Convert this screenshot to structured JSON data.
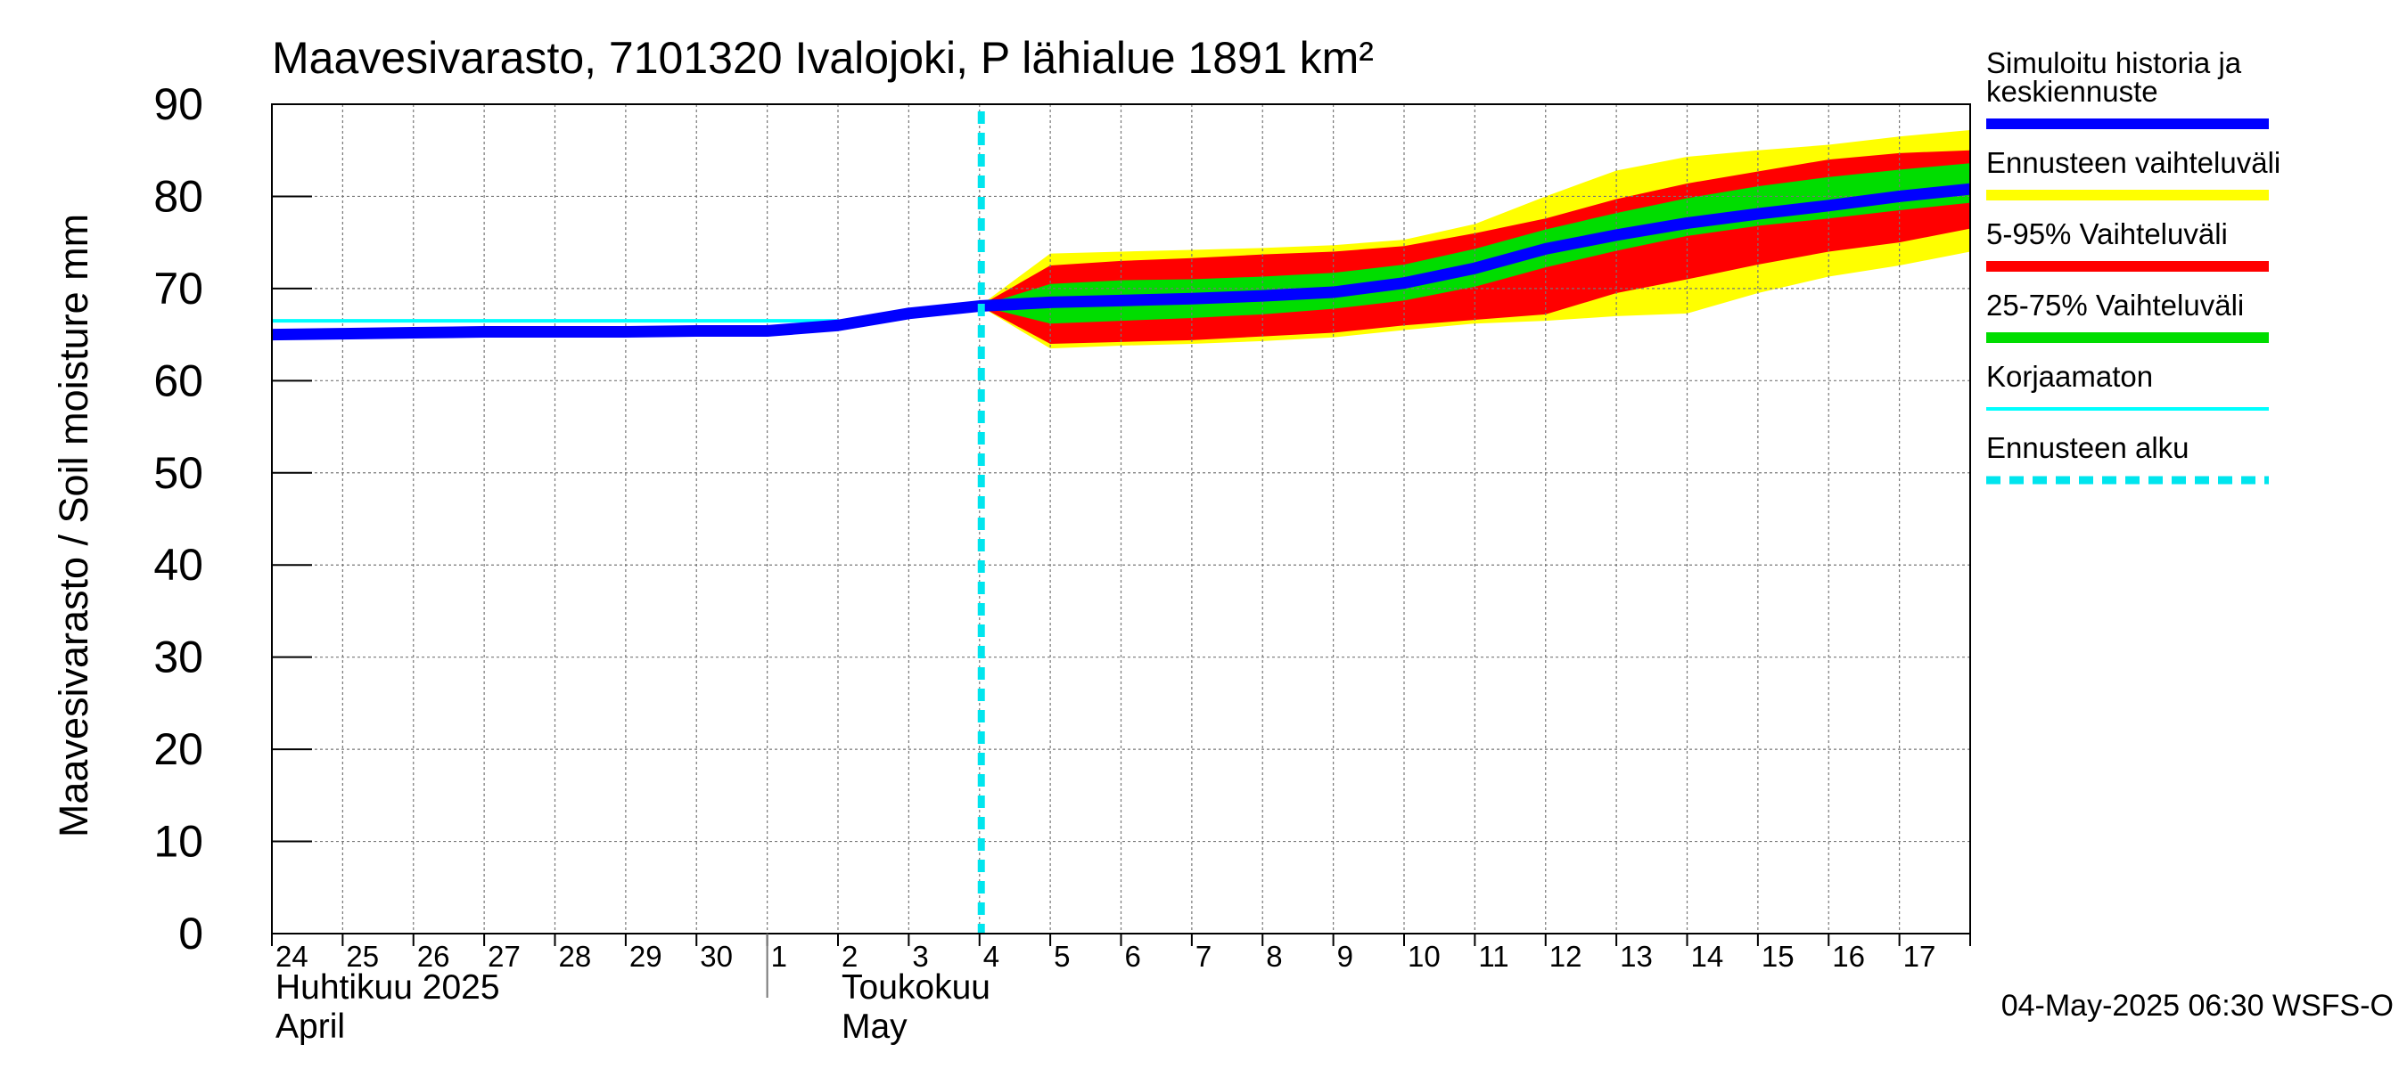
{
  "chart_data": {
    "type": "line",
    "title": "Maavesivarasto, 7101320 Ivalojoki, P lähialue 1891 km²",
    "ylabel": "Maavesivarasto / Soil moisture   mm",
    "ylim": [
      0,
      90
    ],
    "yticks": [
      0,
      10,
      20,
      30,
      40,
      50,
      60,
      70,
      80,
      90
    ],
    "xlim": [
      0,
      24
    ],
    "x_day_labels": [
      "24",
      "25",
      "26",
      "27",
      "28",
      "29",
      "30",
      "1",
      "2",
      "3",
      "4",
      "5",
      "6",
      "7",
      "8",
      "9",
      "10",
      "11",
      "12",
      "13",
      "14",
      "15",
      "16",
      "17"
    ],
    "month_labels": [
      {
        "at": 0,
        "fi": "Huhtikuu  2025",
        "en": "April"
      },
      {
        "at": 8,
        "fi": "Toukokuu",
        "en": "May"
      }
    ],
    "month_divider_at": 7,
    "forecast_start": 10.0,
    "grid": true,
    "legend_position": "right",
    "footer": "04-May-2025 06:30 WSFS-O",
    "colors": {
      "simulated": "#0000ff",
      "full_range": "#ffff00",
      "range_5_95": "#ff0000",
      "range_25_75": "#00dd00",
      "uncorrected": "#00ffff",
      "forecast_start": "#00e5ee"
    },
    "legend": [
      {
        "key": "simulated",
        "label": "Simuloitu historia ja",
        "label2": "keskiennuste",
        "style": "thick"
      },
      {
        "key": "full_range",
        "label": "Ennusteen vaihteluväli",
        "style": "thick"
      },
      {
        "key": "range_5_95",
        "label": "5-95% Vaihteluväli",
        "style": "thick"
      },
      {
        "key": "range_25_75",
        "label": "25-75% Vaihteluväli",
        "style": "thick"
      },
      {
        "key": "uncorrected",
        "label": "Korjaamaton",
        "style": "thin"
      },
      {
        "key": "forecast_start",
        "label": "Ennusteen alku",
        "style": "dashed"
      }
    ],
    "series": {
      "uncorrected": {
        "x": [
          0,
          8.0
        ],
        "y": [
          66.5,
          66.5
        ]
      },
      "simulated": {
        "x": [
          0,
          1,
          2,
          3,
          4,
          5,
          6,
          7,
          8,
          9,
          10,
          11,
          12,
          13,
          14,
          15,
          16,
          17,
          18,
          19,
          20,
          21,
          22,
          23,
          24
        ],
        "y": [
          65.0,
          65.1,
          65.2,
          65.3,
          65.3,
          65.3,
          65.4,
          65.4,
          66.0,
          67.3,
          68.1,
          68.5,
          68.7,
          68.9,
          69.2,
          69.6,
          70.6,
          72.2,
          74.3,
          75.8,
          77.1,
          78.1,
          79.0,
          80.0,
          80.8
        ]
      },
      "full_range": {
        "x": [
          10,
          11,
          12,
          13,
          14,
          15,
          16,
          17,
          18,
          19,
          20,
          21,
          22,
          23,
          24
        ],
        "upper": [
          68.1,
          73.8,
          74.0,
          74.2,
          74.4,
          74.7,
          75.3,
          77.0,
          80.0,
          82.8,
          84.3,
          85.0,
          85.6,
          86.5,
          87.2
        ],
        "lower": [
          68.1,
          63.5,
          63.8,
          64.0,
          64.3,
          64.7,
          65.5,
          66.2,
          66.5,
          67.0,
          67.3,
          69.5,
          71.3,
          72.5,
          74.0
        ]
      },
      "range_5_95": {
        "x": [
          10,
          11,
          12,
          13,
          14,
          15,
          16,
          17,
          18,
          19,
          20,
          21,
          22,
          23,
          24
        ],
        "upper": [
          68.1,
          72.5,
          73.0,
          73.3,
          73.7,
          74.0,
          74.6,
          76.0,
          77.6,
          79.7,
          81.4,
          82.7,
          84.0,
          84.7,
          85.0
        ],
        "lower": [
          68.1,
          64.0,
          64.2,
          64.4,
          64.8,
          65.2,
          66.0,
          66.6,
          67.2,
          69.5,
          71.0,
          72.6,
          74.0,
          75.0,
          76.5
        ]
      },
      "range_25_75": {
        "x": [
          10,
          11,
          12,
          13,
          14,
          15,
          16,
          17,
          18,
          19,
          20,
          21,
          22,
          23,
          24
        ],
        "upper": [
          68.1,
          70.5,
          70.9,
          71.0,
          71.3,
          71.7,
          72.6,
          74.3,
          76.4,
          78.2,
          79.8,
          81.1,
          82.1,
          82.9,
          83.6
        ],
        "lower": [
          68.1,
          66.2,
          66.5,
          66.8,
          67.2,
          67.8,
          68.7,
          70.2,
          72.3,
          74.1,
          75.7,
          76.8,
          77.6,
          78.5,
          79.3
        ]
      }
    }
  }
}
